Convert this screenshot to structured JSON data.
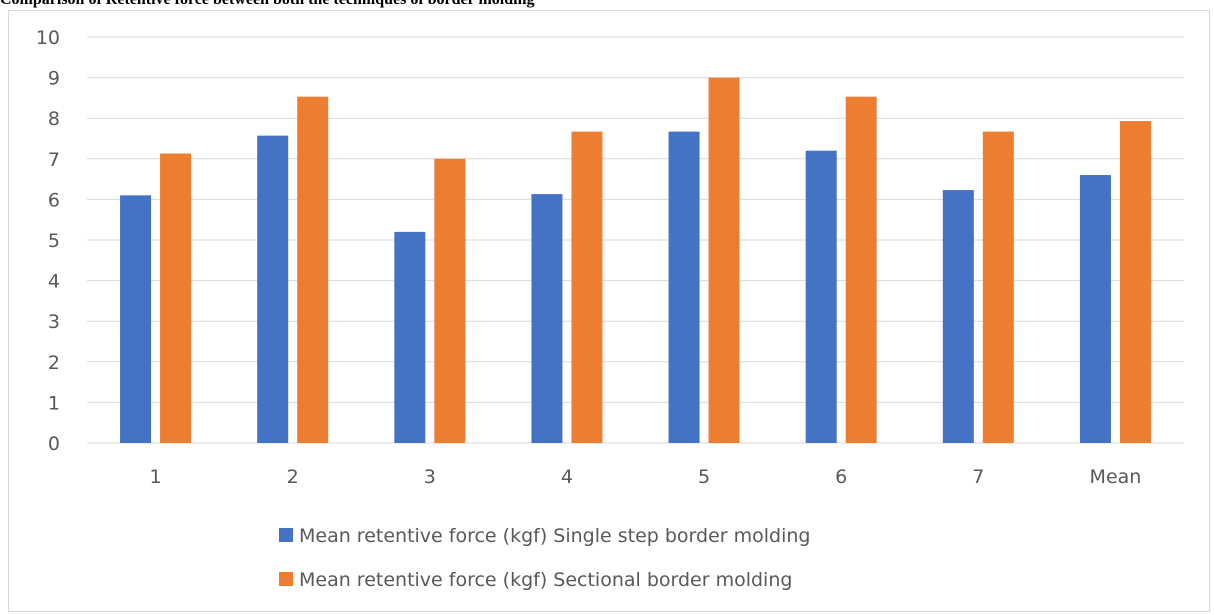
{
  "title": "Comparison of Retentive force between both the techniques of border molding",
  "chart_data": {
    "type": "bar",
    "categories": [
      "1",
      "2",
      "3",
      "4",
      "5",
      "6",
      "7",
      "Mean"
    ],
    "series": [
      {
        "name": "Mean retentive force (kgf) Single step border molding",
        "color": "#4472c4",
        "values": [
          6.1,
          7.57,
          5.2,
          6.13,
          7.67,
          7.2,
          6.23,
          6.6
        ]
      },
      {
        "name": "Mean retentive force (kgf) Sectional border molding",
        "color": "#ed7d31",
        "values": [
          7.13,
          8.53,
          7.0,
          7.67,
          9.0,
          8.53,
          7.67,
          7.93
        ]
      }
    ],
    "ylim": [
      0,
      10
    ],
    "yticks": [
      "0",
      "1",
      "2",
      "3",
      "4",
      "5",
      "6",
      "7",
      "8",
      "9",
      "10"
    ],
    "grid": true,
    "legend": "bottom"
  }
}
